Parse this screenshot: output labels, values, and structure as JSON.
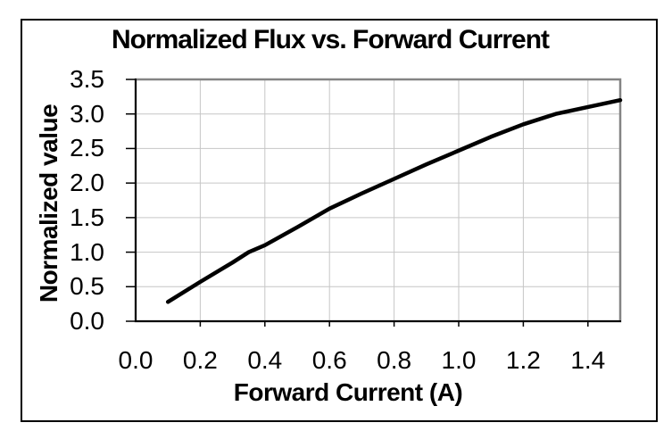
{
  "page": {
    "background": "#ffffff",
    "frame_border_color": "#000000"
  },
  "chart_data": {
    "type": "line",
    "title": "Normalized Flux vs. Forward Current",
    "xlabel": "Forward Current (A)",
    "ylabel": "Normalized value",
    "xlim": [
      0,
      1.5
    ],
    "ylim": [
      0,
      3.5
    ],
    "x_tick_values": [
      0,
      0.2,
      0.4,
      0.6,
      0.8,
      1.0,
      1.2,
      1.4
    ],
    "x_tick_labels": [
      "0.0",
      "0.2",
      "0.4",
      "0.6",
      "0.8",
      "1.0",
      "1.2",
      "1.4"
    ],
    "y_tick_values": [
      0,
      0.5,
      1.0,
      1.5,
      2.0,
      2.5,
      3.0,
      3.5
    ],
    "y_tick_labels": [
      "0.0",
      "0.5",
      "1.0",
      "1.5",
      "2.0",
      "2.5",
      "3.0",
      "3.5"
    ],
    "grid": true,
    "legend": "none",
    "series": [
      {
        "x": [
          0.1,
          0.2,
          0.3,
          0.35,
          0.4,
          0.5,
          0.6,
          0.7,
          0.8,
          0.9,
          1.0,
          1.1,
          1.2,
          1.3,
          1.4,
          1.5
        ],
        "y": [
          0.28,
          0.57,
          0.85,
          1.0,
          1.1,
          1.36,
          1.63,
          1.85,
          2.06,
          2.27,
          2.47,
          2.67,
          2.85,
          3.0,
          3.1,
          3.2
        ],
        "color": "#000000",
        "line_width": 4.5
      }
    ],
    "colors": {
      "gridline": "#c6c6c6",
      "plot_border": "#848484",
      "axis": "#000000",
      "text": "#000000"
    }
  }
}
